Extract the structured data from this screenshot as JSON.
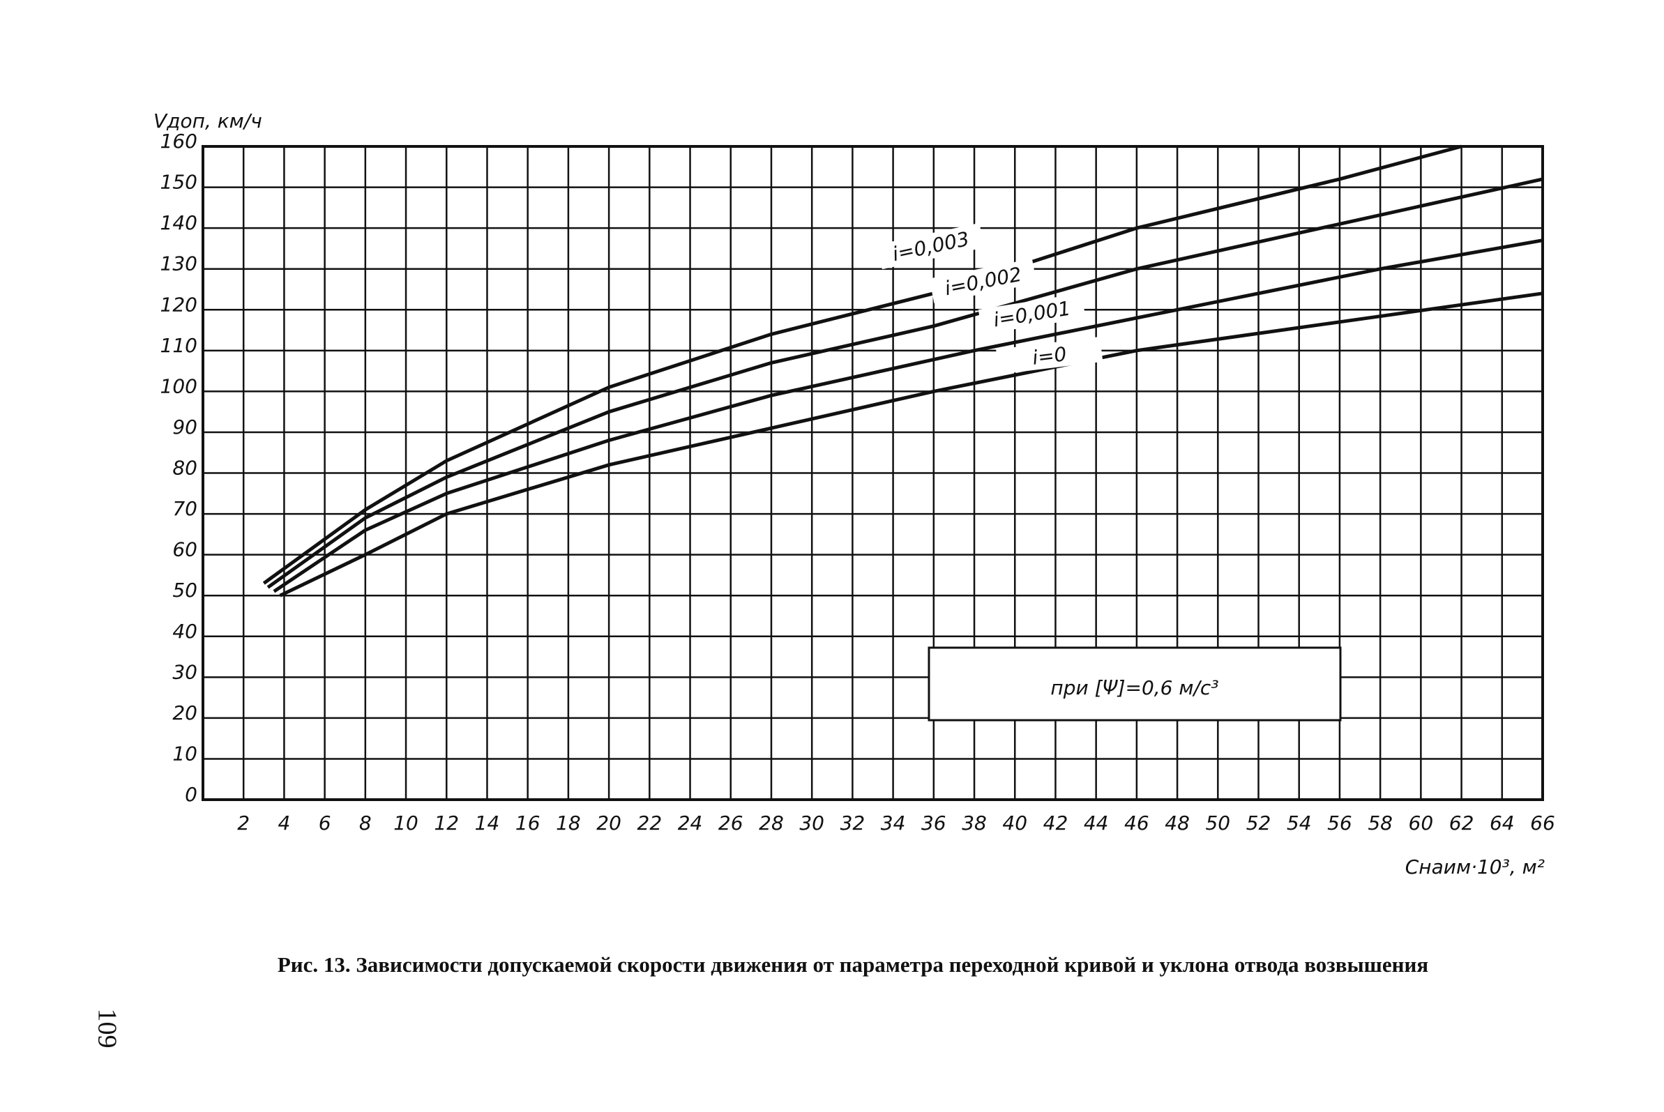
{
  "chart_data": {
    "type": "line",
    "y_label": "Vдоп, км/ч",
    "x_label": "Cнаим·10³, м²",
    "annotation": "при [Ψ]=0,6 м/с³",
    "caption": "Рис. 13. Зависимости допускаемой скорости движения от параметра переходной кривой и уклона отвода возвышения",
    "page_number": "109",
    "xlim": [
      0,
      66
    ],
    "ylim": [
      0,
      160
    ],
    "xticks": [
      2,
      4,
      6,
      8,
      10,
      12,
      14,
      16,
      18,
      20,
      22,
      24,
      26,
      28,
      30,
      32,
      34,
      36,
      38,
      40,
      42,
      44,
      46,
      48,
      50,
      52,
      54,
      56,
      58,
      60,
      62,
      64,
      66
    ],
    "yticks": [
      0,
      10,
      20,
      30,
      40,
      50,
      60,
      70,
      80,
      90,
      100,
      110,
      120,
      130,
      140,
      150,
      160
    ],
    "grid": true,
    "series": [
      {
        "name": "i=0,003",
        "color": "#111111",
        "x": [
          3,
          8,
          12,
          20,
          28,
          36,
          46,
          56,
          62
        ],
        "values": [
          53,
          71,
          83,
          101,
          114,
          124,
          140,
          152,
          160
        ]
      },
      {
        "name": "i=0,002",
        "color": "#111111",
        "x": [
          3.2,
          8,
          12,
          20,
          28,
          36,
          46,
          56,
          66
        ],
        "values": [
          52,
          69,
          79,
          95,
          107,
          116,
          130,
          141,
          152
        ]
      },
      {
        "name": "i=0,001",
        "color": "#111111",
        "x": [
          3.5,
          8,
          12,
          20,
          28,
          38,
          48,
          58,
          66
        ],
        "values": [
          51,
          66,
          75,
          88,
          99,
          110,
          120,
          130,
          137
        ]
      },
      {
        "name": "i=0",
        "color": "#111111",
        "x": [
          3.8,
          8,
          12,
          20,
          28,
          36,
          46,
          56,
          66
        ],
        "values": [
          50,
          60,
          70,
          82,
          91,
          100,
          110,
          117,
          124
        ]
      }
    ]
  }
}
